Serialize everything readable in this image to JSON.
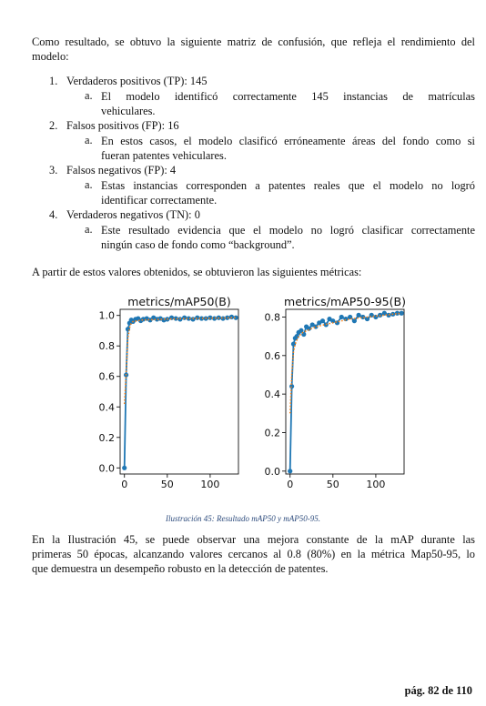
{
  "intro": {
    "line1": "Como resultado, se obtuvo la siguiente matriz de confusión, que refleja el rendimiento del",
    "line2": "modelo:"
  },
  "items": [
    {
      "num": "1.",
      "text": "Verdaderos positivos (TP): 145",
      "sub_letter": "a.",
      "sub_lines": [
        "El modelo identificó correctamente 145 instancias de matrículas",
        "vehiculares."
      ]
    },
    {
      "num": "2.",
      "text": "Falsos positivos (FP): 16",
      "sub_letter": "a.",
      "sub_lines": [
        "En estos casos, el modelo clasificó erróneamente áreas del fondo como si",
        "fueran patentes vehiculares."
      ]
    },
    {
      "num": "3.",
      "text": "Falsos negativos (FP): 4",
      "sub_letter": "a.",
      "sub_lines": [
        "Estas instancias corresponden a patentes reales que el modelo no logró",
        "identificar correctamente."
      ]
    },
    {
      "num": "4.",
      "text": "Verdaderos negativos (TN): 0",
      "sub_letter": "a.",
      "sub_lines": [
        "Este resultado evidencia que el modelo no logró clasificar correctamente",
        "ningún caso de fondo como “background”."
      ]
    }
  ],
  "metrics_intro": "A partir de estos valores obtenidos, se obtuvieron las siguientes métricas:",
  "caption": "Ilustración 45: Resultado mAP50 y mAP50-95.",
  "conclusion": [
    "En la Ilustración 45, se puede observar una mejora constante de la mAP durante las",
    "primeras 50 épocas, alcanzando valores cercanos al 0.8 (80%) en la métrica Map50-95, lo",
    "que demuestra un desempeño robusto en la detección de patentes."
  ],
  "footer": "pág. 82 de 110",
  "colors": {
    "line": "#1f77b4",
    "dotted": "#ff7f0e",
    "caption": "#2e4c7d"
  },
  "chart_data": [
    {
      "type": "line",
      "title": "metrics/mAP50(B)",
      "xlabel": "",
      "ylabel": "",
      "xlim": [
        -5,
        133
      ],
      "ylim": [
        -0.04,
        1.04
      ],
      "xticks": [
        0,
        50,
        100
      ],
      "xtick_labels": [
        "0",
        "50",
        "100"
      ],
      "yticks": [
        0.0,
        0.2,
        0.4,
        0.6,
        0.8,
        1.0
      ],
      "ytick_labels": [
        "0.0",
        "0.2",
        "0.4",
        "0.6",
        "0.8",
        "1.0"
      ],
      "grid": false,
      "series": [
        {
          "style": "line-markers",
          "x": [
            0,
            2,
            4,
            6,
            8,
            10,
            13,
            16,
            19,
            22,
            26,
            30,
            34,
            38,
            42,
            46,
            50,
            55,
            60,
            65,
            70,
            75,
            80,
            85,
            90,
            95,
            100,
            105,
            110,
            115,
            120,
            125,
            130
          ],
          "y": [
            0.0,
            0.61,
            0.91,
            0.95,
            0.97,
            0.96,
            0.975,
            0.98,
            0.965,
            0.975,
            0.98,
            0.97,
            0.985,
            0.975,
            0.98,
            0.97,
            0.975,
            0.985,
            0.98,
            0.975,
            0.985,
            0.98,
            0.975,
            0.985,
            0.98,
            0.98,
            0.985,
            0.98,
            0.985,
            0.98,
            0.985,
            0.99,
            0.985
          ]
        },
        {
          "style": "dotted",
          "x": [
            0,
            2,
            4,
            6,
            8,
            10,
            15,
            20,
            30,
            40,
            50,
            60,
            70,
            80,
            90,
            100,
            110,
            120,
            130
          ],
          "y": [
            0.42,
            0.62,
            0.85,
            0.92,
            0.95,
            0.96,
            0.965,
            0.97,
            0.972,
            0.974,
            0.976,
            0.978,
            0.979,
            0.98,
            0.981,
            0.982,
            0.983,
            0.984,
            0.985
          ]
        }
      ]
    },
    {
      "type": "line",
      "title": "metrics/mAP50-95(B)",
      "xlabel": "",
      "ylabel": "",
      "xlim": [
        -5,
        133
      ],
      "ylim": [
        -0.015,
        0.84
      ],
      "xticks": [
        0,
        50,
        100
      ],
      "xtick_labels": [
        "0",
        "50",
        "100"
      ],
      "yticks": [
        0.0,
        0.2,
        0.4,
        0.6,
        0.8
      ],
      "ytick_labels": [
        "0.0",
        "0.2",
        "0.4",
        "0.6",
        "0.8"
      ],
      "grid": false,
      "series": [
        {
          "style": "line-markers",
          "x": [
            0,
            2,
            4,
            6,
            8,
            10,
            13,
            16,
            19,
            22,
            26,
            30,
            34,
            38,
            42,
            46,
            50,
            55,
            60,
            65,
            70,
            75,
            80,
            85,
            90,
            95,
            100,
            105,
            110,
            115,
            120,
            125,
            130
          ],
          "y": [
            0.0,
            0.44,
            0.66,
            0.69,
            0.7,
            0.72,
            0.73,
            0.71,
            0.75,
            0.74,
            0.76,
            0.75,
            0.77,
            0.78,
            0.76,
            0.79,
            0.78,
            0.77,
            0.8,
            0.79,
            0.8,
            0.78,
            0.81,
            0.8,
            0.79,
            0.81,
            0.8,
            0.81,
            0.82,
            0.81,
            0.815,
            0.82,
            0.82
          ]
        },
        {
          "style": "dotted",
          "x": [
            0,
            2,
            4,
            6,
            8,
            10,
            15,
            20,
            30,
            40,
            50,
            60,
            70,
            80,
            90,
            100,
            110,
            120,
            130
          ],
          "y": [
            0.3,
            0.5,
            0.62,
            0.66,
            0.68,
            0.7,
            0.72,
            0.73,
            0.75,
            0.76,
            0.77,
            0.78,
            0.79,
            0.795,
            0.8,
            0.805,
            0.81,
            0.815,
            0.82
          ]
        }
      ]
    }
  ]
}
